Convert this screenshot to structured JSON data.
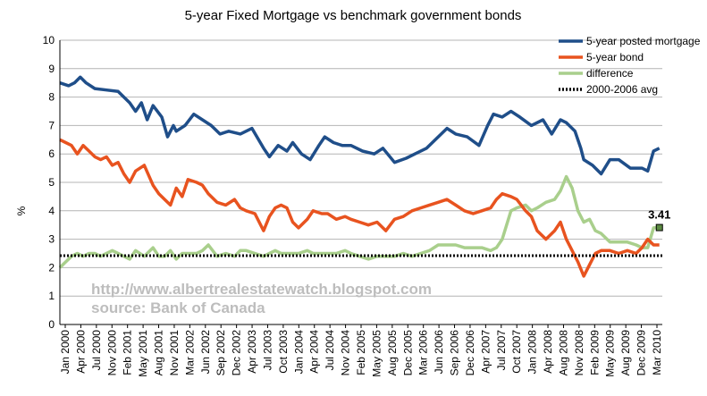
{
  "chart_data": {
    "type": "line",
    "title": "5-year Fixed Mortgage vs benchmark government bonds",
    "ylabel": "%",
    "xlabel": "",
    "ylim": [
      0,
      10
    ],
    "yticks": [
      "0",
      "1",
      "2",
      "3",
      "4",
      "5",
      "6",
      "7",
      "8",
      "9",
      "10"
    ],
    "xticks": [
      "Jan 2000",
      "Apr 2000",
      "Jul 2000",
      "Nov 2000",
      "Feb 2001",
      "May 2001",
      "Aug 2001",
      "Nov 2001",
      "Mar 2002",
      "Jun 2002",
      "Sep 2002",
      "Dec 2002",
      "Apr 2003",
      "Jul 2003",
      "Oct 2003",
      "Jan 2004",
      "Apr 2004",
      "Jul 2004",
      "Nov 2004",
      "Feb 2005",
      "May 2005",
      "Aug 2005",
      "Dec 2005",
      "Mar 2006",
      "Jun 2006",
      "Sep 2006",
      "Dec 2006",
      "Apr 2007",
      "Jul 2007",
      "Oct 2007",
      "Jan 2008",
      "Apr 2008",
      "Aug 2008",
      "Nov 2008",
      "Feb 2009",
      "May 2009",
      "Aug 2009",
      "Dec 2009",
      "Mar 2010"
    ],
    "xrange": [
      2000.0,
      2010.35
    ],
    "grid": "horizontal",
    "legend_position": "top-right",
    "series": [
      {
        "name": "5-year posted mortgage",
        "color": "#1f4e89",
        "style": "solid",
        "x": [
          2000.0,
          2000.15,
          2000.25,
          2000.35,
          2000.45,
          2000.6,
          2000.8,
          2001.0,
          2001.2,
          2001.3,
          2001.4,
          2001.5,
          2001.6,
          2001.75,
          2001.85,
          2001.95,
          2002.0,
          2002.15,
          2002.3,
          2002.45,
          2002.6,
          2002.75,
          2002.9,
          2003.1,
          2003.3,
          2003.5,
          2003.6,
          2003.75,
          2003.9,
          2004.0,
          2004.15,
          2004.3,
          2004.45,
          2004.55,
          2004.7,
          2004.85,
          2005.0,
          2005.2,
          2005.4,
          2005.55,
          2005.75,
          2005.95,
          2006.1,
          2006.3,
          2006.5,
          2006.65,
          2006.8,
          2007.0,
          2007.2,
          2007.35,
          2007.45,
          2007.6,
          2007.75,
          2007.9,
          2008.1,
          2008.3,
          2008.45,
          2008.6,
          2008.7,
          2008.85,
          2008.95,
          2009.0,
          2009.15,
          2009.3,
          2009.45,
          2009.6,
          2009.8,
          2010.0,
          2010.1,
          2010.2,
          2010.3
        ],
        "y": [
          8.5,
          8.4,
          8.5,
          8.7,
          8.5,
          8.3,
          8.25,
          8.2,
          7.8,
          7.5,
          7.8,
          7.2,
          7.7,
          7.3,
          6.6,
          7.0,
          6.8,
          7.0,
          7.4,
          7.2,
          7.0,
          6.7,
          6.8,
          6.7,
          6.9,
          6.2,
          5.9,
          6.3,
          6.1,
          6.4,
          6.0,
          5.8,
          6.3,
          6.6,
          6.4,
          6.3,
          6.3,
          6.1,
          6.0,
          6.2,
          5.7,
          5.85,
          6.0,
          6.2,
          6.6,
          6.9,
          6.7,
          6.6,
          6.3,
          7.0,
          7.4,
          7.3,
          7.5,
          7.3,
          7.0,
          7.2,
          6.7,
          7.2,
          7.1,
          6.8,
          6.2,
          5.8,
          5.6,
          5.3,
          5.8,
          5.8,
          5.5,
          5.5,
          5.4,
          6.1,
          6.2
        ]
      },
      {
        "name": "5-year bond",
        "color": "#e8531f",
        "style": "solid",
        "x": [
          2000.0,
          2000.1,
          2000.2,
          2000.3,
          2000.4,
          2000.5,
          2000.6,
          2000.7,
          2000.8,
          2000.9,
          2001.0,
          2001.1,
          2001.2,
          2001.3,
          2001.45,
          2001.6,
          2001.7,
          2001.8,
          2001.9,
          2002.0,
          2002.1,
          2002.2,
          2002.35,
          2002.45,
          2002.55,
          2002.7,
          2002.85,
          2003.0,
          2003.1,
          2003.2,
          2003.35,
          2003.5,
          2003.6,
          2003.7,
          2003.8,
          2003.9,
          2004.0,
          2004.1,
          2004.25,
          2004.35,
          2004.5,
          2004.6,
          2004.75,
          2004.9,
          2005.0,
          2005.15,
          2005.3,
          2005.45,
          2005.6,
          2005.75,
          2005.9,
          2006.05,
          2006.2,
          2006.35,
          2006.5,
          2006.65,
          2006.8,
          2006.95,
          2007.1,
          2007.25,
          2007.4,
          2007.5,
          2007.6,
          2007.75,
          2007.85,
          2008.0,
          2008.1,
          2008.2,
          2008.35,
          2008.5,
          2008.6,
          2008.7,
          2008.8,
          2008.9,
          2009.0,
          2009.1,
          2009.2,
          2009.3,
          2009.45,
          2009.6,
          2009.75,
          2009.9,
          2010.0,
          2010.1,
          2010.2,
          2010.3
        ],
        "y": [
          6.5,
          6.4,
          6.3,
          6.0,
          6.3,
          6.1,
          5.9,
          5.8,
          5.9,
          5.6,
          5.7,
          5.3,
          5.0,
          5.4,
          5.6,
          4.9,
          4.6,
          4.4,
          4.2,
          4.8,
          4.5,
          5.1,
          5.0,
          4.9,
          4.6,
          4.3,
          4.2,
          4.4,
          4.1,
          4.0,
          3.9,
          3.3,
          3.8,
          4.1,
          4.2,
          4.1,
          3.6,
          3.4,
          3.7,
          4.0,
          3.9,
          3.9,
          3.7,
          3.8,
          3.7,
          3.6,
          3.5,
          3.6,
          3.3,
          3.7,
          3.8,
          4.0,
          4.1,
          4.2,
          4.3,
          4.4,
          4.2,
          4.0,
          3.9,
          4.0,
          4.1,
          4.4,
          4.6,
          4.5,
          4.4,
          4.0,
          3.8,
          3.3,
          3.0,
          3.3,
          3.6,
          3.0,
          2.6,
          2.2,
          1.7,
          2.1,
          2.5,
          2.6,
          2.6,
          2.5,
          2.6,
          2.5,
          2.7,
          3.0,
          2.8,
          2.8
        ]
      },
      {
        "name": "difference",
        "color": "#a9cf8c",
        "style": "solid",
        "x": [
          2000.0,
          2000.1,
          2000.2,
          2000.3,
          2000.4,
          2000.5,
          2000.6,
          2000.7,
          2000.8,
          2000.9,
          2001.0,
          2001.1,
          2001.2,
          2001.3,
          2001.45,
          2001.6,
          2001.7,
          2001.8,
          2001.9,
          2002.0,
          2002.1,
          2002.2,
          2002.35,
          2002.45,
          2002.55,
          2002.7,
          2002.85,
          2003.0,
          2003.1,
          2003.2,
          2003.35,
          2003.5,
          2003.6,
          2003.7,
          2003.8,
          2003.9,
          2004.0,
          2004.1,
          2004.25,
          2004.35,
          2004.5,
          2004.6,
          2004.75,
          2004.9,
          2005.0,
          2005.15,
          2005.3,
          2005.45,
          2005.6,
          2005.75,
          2005.9,
          2006.05,
          2006.2,
          2006.35,
          2006.5,
          2006.65,
          2006.8,
          2006.95,
          2007.1,
          2007.25,
          2007.4,
          2007.5,
          2007.6,
          2007.75,
          2007.85,
          2008.0,
          2008.1,
          2008.2,
          2008.35,
          2008.5,
          2008.6,
          2008.7,
          2008.8,
          2008.9,
          2009.0,
          2009.1,
          2009.2,
          2009.3,
          2009.45,
          2009.6,
          2009.75,
          2009.9,
          2010.0,
          2010.1,
          2010.2,
          2010.3
        ],
        "y": [
          2.0,
          2.2,
          2.4,
          2.5,
          2.4,
          2.5,
          2.5,
          2.4,
          2.5,
          2.6,
          2.5,
          2.4,
          2.3,
          2.6,
          2.4,
          2.7,
          2.4,
          2.4,
          2.6,
          2.3,
          2.5,
          2.5,
          2.5,
          2.6,
          2.8,
          2.4,
          2.5,
          2.4,
          2.6,
          2.6,
          2.5,
          2.4,
          2.5,
          2.6,
          2.5,
          2.5,
          2.5,
          2.5,
          2.6,
          2.5,
          2.5,
          2.5,
          2.5,
          2.6,
          2.5,
          2.4,
          2.3,
          2.4,
          2.4,
          2.4,
          2.5,
          2.4,
          2.5,
          2.6,
          2.8,
          2.8,
          2.8,
          2.7,
          2.7,
          2.7,
          2.6,
          2.7,
          3.0,
          4.0,
          4.1,
          4.2,
          4.0,
          4.1,
          4.3,
          4.4,
          4.7,
          5.2,
          4.8,
          4.0,
          3.6,
          3.7,
          3.3,
          3.2,
          2.9,
          2.9,
          2.9,
          2.8,
          2.7,
          2.7,
          3.4,
          3.41
        ]
      },
      {
        "name": "2000-2006 avg",
        "color": "#000000",
        "style": "dotted",
        "x": [
          2000.0,
          2010.35
        ],
        "y": [
          2.42,
          2.42
        ]
      }
    ],
    "annotations": [
      {
        "text": "3.41",
        "x": 2010.3,
        "y": 3.41
      }
    ],
    "watermark": [
      "http://www.albertrealestatewatch.blogspot.com",
      "source: Bank of Canada"
    ]
  }
}
